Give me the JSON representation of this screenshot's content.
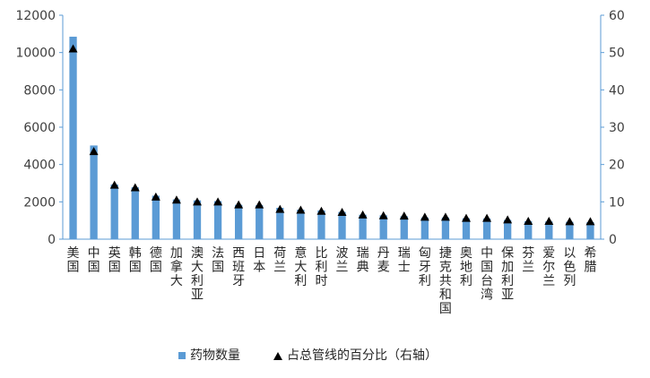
{
  "chart_data": {
    "type": "bar",
    "categories": [
      "美国",
      "中国",
      "英国",
      "韩国",
      "德国",
      "加拿大",
      "澳大利亚",
      "法国",
      "西班牙",
      "日本",
      "荷兰",
      "意大利",
      "比利时",
      "波兰",
      "瑞典",
      "丹麦",
      "瑞士",
      "匈牙利",
      "捷克共和国",
      "奥地利",
      "中国台湾",
      "保加利亚",
      "芬兰",
      "爱尔兰",
      "以色列",
      "希腊"
    ],
    "series": [
      {
        "name": "药物数量",
        "type": "bar",
        "axis": "left",
        "color": "#5b9bd5",
        "values": [
          10850,
          5020,
          2930,
          2780,
          2330,
          2130,
          2080,
          2040,
          1840,
          1820,
          1680,
          1580,
          1540,
          1460,
          1310,
          1280,
          1230,
          1160,
          1160,
          1120,
          1110,
          1030,
          960,
          950,
          930,
          910
        ]
      },
      {
        "name": "占总管线的百分比（右轴）",
        "type": "marker",
        "axis": "right",
        "color": "#000000",
        "values": [
          51.0,
          23.5,
          14.5,
          13.8,
          11.3,
          10.5,
          10.0,
          10.0,
          9.2,
          9.2,
          8.0,
          7.8,
          7.5,
          7.2,
          6.5,
          6.3,
          6.2,
          5.9,
          5.9,
          5.6,
          5.6,
          5.2,
          4.8,
          4.8,
          4.7,
          4.7
        ]
      }
    ],
    "y_left": {
      "min": 0,
      "max": 12000,
      "ticks": [
        0,
        2000,
        4000,
        6000,
        8000,
        10000,
        12000
      ]
    },
    "y_right": {
      "min": 0,
      "max": 60,
      "ticks": [
        0,
        10,
        20,
        30,
        40,
        50,
        60
      ]
    },
    "grid": false,
    "legend_position": "bottom",
    "axis_color": "#5b9bd5"
  }
}
